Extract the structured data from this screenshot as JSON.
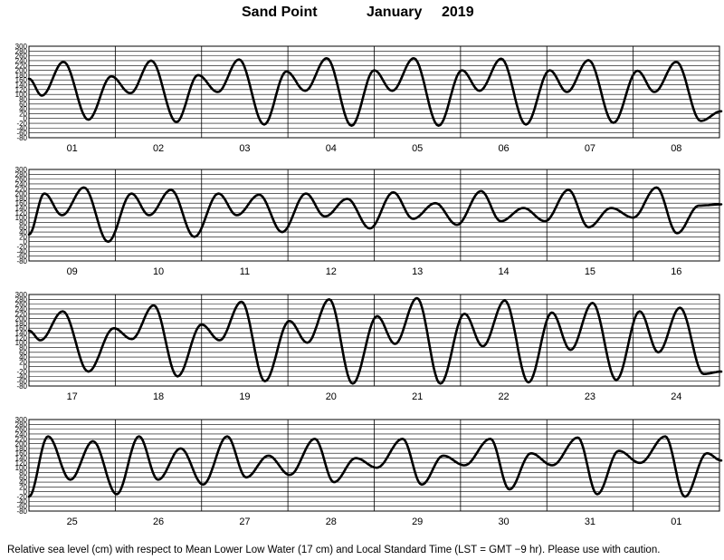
{
  "title": {
    "location": "Sand Point",
    "month": "January",
    "year": "2019"
  },
  "footer": "Relative sea level (cm) with respect to Mean Lower Low Water (17 cm) and Local Standard Time (LST = GMT −9 hr). Please use with caution.",
  "chart_data": {
    "type": "line",
    "xlabel": "",
    "ylabel": "",
    "ylim": [
      -80,
      300
    ],
    "yticks": [
      "300",
      "280",
      "260",
      "240",
      "220",
      "200",
      "180",
      "160",
      "140",
      "120",
      "100",
      "80",
      "60",
      "40",
      "20",
      "0",
      "-20",
      "-40",
      "-60",
      "-80"
    ],
    "grid": true,
    "line_color": "#000000",
    "panels": [
      {
        "days": [
          "01",
          "02",
          "03",
          "04",
          "05",
          "06",
          "07",
          "08"
        ],
        "start_level": 165,
        "extrema": [
          [
            3.6,
            95
          ],
          [
            9.6,
            235
          ],
          [
            16.5,
            -5
          ],
          [
            22.9,
            175
          ],
          [
            28.2,
            105
          ],
          [
            34.0,
            240
          ],
          [
            41.0,
            -15
          ],
          [
            47.0,
            180
          ],
          [
            52.5,
            110
          ],
          [
            58.4,
            245
          ],
          [
            65.4,
            -25
          ],
          [
            71.6,
            195
          ],
          [
            76.8,
            115
          ],
          [
            82.8,
            250
          ],
          [
            89.7,
            -30
          ],
          [
            96.0,
            200
          ],
          [
            101.0,
            115
          ],
          [
            107.0,
            250
          ],
          [
            113.9,
            -30
          ],
          [
            120.4,
            200
          ],
          [
            125.3,
            115
          ],
          [
            131.3,
            248
          ],
          [
            138.2,
            -25
          ],
          [
            144.8,
            200
          ],
          [
            149.6,
            110
          ],
          [
            155.6,
            242
          ],
          [
            162.5,
            -18
          ],
          [
            169.2,
            198
          ],
          [
            173.9,
            110
          ],
          [
            180.0,
            235
          ],
          [
            186.8,
            -10
          ],
          [
            192.5,
            30
          ]
        ]
      },
      {
        "days": [
          "09",
          "10",
          "11",
          "12",
          "13",
          "14",
          "15",
          "16"
        ],
        "start_level": 30,
        "extrema": [
          [
            4.3,
            200
          ],
          [
            9.2,
            110
          ],
          [
            15.3,
            225
          ],
          [
            22.0,
            0
          ],
          [
            28.5,
            200
          ],
          [
            33.4,
            110
          ],
          [
            39.5,
            215
          ],
          [
            46.0,
            20
          ],
          [
            52.7,
            200
          ],
          [
            57.8,
            110
          ],
          [
            64.0,
            195
          ],
          [
            70.4,
            40
          ],
          [
            77.0,
            200
          ],
          [
            82.3,
            105
          ],
          [
            88.5,
            178
          ],
          [
            94.8,
            55
          ],
          [
            101.3,
            205
          ],
          [
            106.8,
            95
          ],
          [
            113.0,
            160
          ],
          [
            119.0,
            70
          ],
          [
            125.7,
            210
          ],
          [
            131.2,
            85
          ],
          [
            137.5,
            140
          ],
          [
            143.5,
            85
          ],
          [
            150.0,
            215
          ],
          [
            155.6,
            60
          ],
          [
            161.9,
            140
          ],
          [
            168.0,
            100
          ],
          [
            174.5,
            225
          ],
          [
            180.2,
            35
          ],
          [
            186.3,
            150
          ],
          [
            192.5,
            155
          ]
        ]
      },
      {
        "days": [
          "17",
          "18",
          "19",
          "20",
          "21",
          "22",
          "23",
          "24"
        ],
        "start_level": 150,
        "extrema": [
          [
            3.2,
            110
          ],
          [
            9.4,
            230
          ],
          [
            16.5,
            -20
          ],
          [
            23.6,
            160
          ],
          [
            28.6,
            115
          ],
          [
            34.7,
            255
          ],
          [
            41.3,
            -40
          ],
          [
            48.0,
            175
          ],
          [
            53.0,
            110
          ],
          [
            59.1,
            270
          ],
          [
            65.6,
            -60
          ],
          [
            72.4,
            190
          ],
          [
            77.4,
            100
          ],
          [
            83.5,
            280
          ],
          [
            90.0,
            -70
          ],
          [
            96.8,
            210
          ],
          [
            101.8,
            95
          ],
          [
            107.9,
            285
          ],
          [
            114.4,
            -70
          ],
          [
            121.1,
            220
          ],
          [
            126.2,
            85
          ],
          [
            132.3,
            275
          ],
          [
            138.9,
            -65
          ],
          [
            145.4,
            225
          ],
          [
            150.6,
            70
          ],
          [
            156.7,
            265
          ],
          [
            163.3,
            -55
          ],
          [
            169.8,
            230
          ],
          [
            175.0,
            60
          ],
          [
            181.0,
            245
          ],
          [
            187.6,
            -30
          ],
          [
            192.5,
            -20
          ]
        ]
      },
      {
        "days": [
          "25",
          "26",
          "27",
          "28",
          "29",
          "30",
          "31",
          "01"
        ],
        "start_level": -20,
        "extrema": [
          [
            5.3,
            230
          ],
          [
            11.5,
            50
          ],
          [
            17.8,
            210
          ],
          [
            24.4,
            -10
          ],
          [
            30.6,
            230
          ],
          [
            35.9,
            50
          ],
          [
            42.2,
            180
          ],
          [
            48.4,
            30
          ],
          [
            55.1,
            230
          ],
          [
            60.4,
            60
          ],
          [
            66.6,
            150
          ],
          [
            72.5,
            70
          ],
          [
            79.5,
            220
          ],
          [
            84.8,
            40
          ],
          [
            90.9,
            140
          ],
          [
            96.7,
            100
          ],
          [
            103.9,
            220
          ],
          [
            109.2,
            30
          ],
          [
            115.2,
            150
          ],
          [
            121.1,
            110
          ],
          [
            128.3,
            220
          ],
          [
            133.6,
            10
          ],
          [
            139.6,
            160
          ],
          [
            145.5,
            110
          ],
          [
            152.6,
            225
          ],
          [
            158.0,
            -10
          ],
          [
            164.0,
            170
          ],
          [
            169.9,
            120
          ],
          [
            176.9,
            230
          ],
          [
            182.4,
            -20
          ],
          [
            188.5,
            160
          ],
          [
            192.5,
            130
          ]
        ]
      }
    ]
  }
}
